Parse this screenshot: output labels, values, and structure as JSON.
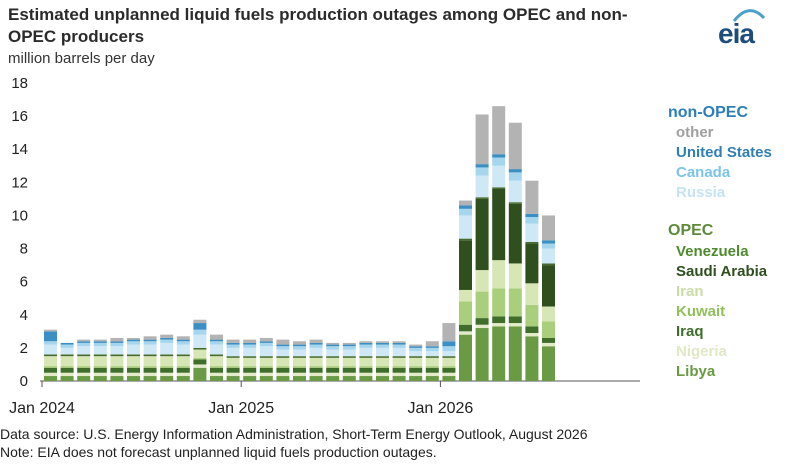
{
  "header": {
    "title": "Estimated unplanned liquid fuels production outages among OPEC and non-OPEC producers",
    "units": "million barrels per day",
    "logo": "eia"
  },
  "footer": {
    "source": "Data source: U.S. Energy Information Administration, Short-Term Energy Outlook, August 2026",
    "note": "Note: EIA does not forecast unplanned liquid fuels production outages."
  },
  "chart_data": {
    "type": "bar",
    "stacked": true,
    "ylim": [
      0,
      18
    ],
    "yticks": [
      0,
      2,
      4,
      6,
      8,
      10,
      12,
      14,
      16,
      18
    ],
    "xtick_labels": [
      "Jan 2024",
      "Jan 2025",
      "Jan 2026"
    ],
    "categories": [
      "Jan 2024",
      "Feb 2024",
      "Mar 2024",
      "Apr 2024",
      "May 2024",
      "Jun 2024",
      "Jul 2024",
      "Aug 2024",
      "Sep 2024",
      "Oct 2024",
      "Nov 2024",
      "Dec 2024",
      "Jan 2025",
      "Feb 2025",
      "Mar 2025",
      "Apr 2025",
      "May 2025",
      "Jun 2025",
      "Jul 2025",
      "Aug 2025",
      "Sep 2025",
      "Oct 2025",
      "Nov 2025",
      "Dec 2025",
      "Jan 2026",
      "Feb 2026",
      "Mar 2026",
      "Apr 2026",
      "May 2026",
      "Jun 2026",
      "Jul 2026"
    ],
    "legend_groups": [
      {
        "label": "non-OPEC",
        "color": "#2c7fb8",
        "items": [
          "other",
          "United States",
          "Canada",
          "Russia"
        ]
      },
      {
        "label": "OPEC",
        "color": "#5d8a3a",
        "items": [
          "Venezuela",
          "Saudi Arabia",
          "Iran",
          "Kuwait",
          "Iraq",
          "Nigeria",
          "Libya"
        ]
      }
    ],
    "series": [
      {
        "name": "Libya",
        "color": "#6a9a44",
        "values": [
          0.3,
          0.3,
          0.3,
          0.3,
          0.3,
          0.3,
          0.3,
          0.3,
          0.3,
          0.8,
          0.3,
          0.3,
          0.3,
          0.3,
          0.3,
          0.3,
          0.3,
          0.3,
          0.3,
          0.3,
          0.3,
          0.3,
          0.3,
          0.3,
          0.3,
          2.8,
          3.2,
          3.3,
          3.3,
          2.7,
          2.1
        ]
      },
      {
        "name": "Nigeria",
        "color": "#e3ecc8",
        "values": [
          0.2,
          0.2,
          0.2,
          0.2,
          0.2,
          0.2,
          0.2,
          0.2,
          0.2,
          0.2,
          0.2,
          0.2,
          0.2,
          0.2,
          0.2,
          0.2,
          0.2,
          0.2,
          0.2,
          0.2,
          0.2,
          0.2,
          0.2,
          0.2,
          0.2,
          0.2,
          0.2,
          0.2,
          0.2,
          0.2,
          0.2
        ]
      },
      {
        "name": "Iraq",
        "color": "#3f6e2a",
        "values": [
          0.3,
          0.3,
          0.3,
          0.3,
          0.3,
          0.3,
          0.3,
          0.3,
          0.3,
          0.3,
          0.3,
          0.3,
          0.3,
          0.3,
          0.3,
          0.3,
          0.3,
          0.3,
          0.3,
          0.3,
          0.3,
          0.3,
          0.3,
          0.3,
          0.3,
          0.4,
          0.4,
          0.4,
          0.4,
          0.4,
          0.3
        ]
      },
      {
        "name": "Kuwait",
        "color": "#a9cf7c",
        "values": [
          0.1,
          0.1,
          0.1,
          0.1,
          0.1,
          0.1,
          0.1,
          0.1,
          0.1,
          0.1,
          0.1,
          0.1,
          0.1,
          0.1,
          0.1,
          0.1,
          0.1,
          0.1,
          0.1,
          0.1,
          0.1,
          0.1,
          0.1,
          0.1,
          0.1,
          1.4,
          1.6,
          1.7,
          1.7,
          1.3,
          1.0
        ]
      },
      {
        "name": "Iran",
        "color": "#d6e6b5",
        "values": [
          0.6,
          0.6,
          0.6,
          0.6,
          0.6,
          0.6,
          0.6,
          0.6,
          0.6,
          0.5,
          0.6,
          0.5,
          0.5,
          0.5,
          0.5,
          0.5,
          0.5,
          0.5,
          0.5,
          0.5,
          0.5,
          0.5,
          0.5,
          0.5,
          0.5,
          0.7,
          1.3,
          1.7,
          1.5,
          1.3,
          0.9
        ]
      },
      {
        "name": "Saudi Arabia",
        "color": "#2f4f1f",
        "values": [
          0,
          0,
          0,
          0,
          0,
          0,
          0,
          0,
          0,
          0,
          0,
          0,
          0,
          0,
          0,
          0,
          0,
          0,
          0,
          0,
          0,
          0,
          0,
          0,
          0,
          3.0,
          4.3,
          4.3,
          3.6,
          2.4,
          2.5
        ]
      },
      {
        "name": "Venezuela",
        "color": "#466b2e",
        "values": [
          0.1,
          0.1,
          0.1,
          0.1,
          0.1,
          0.1,
          0.1,
          0.1,
          0.1,
          0.1,
          0.1,
          0.1,
          0.1,
          0.1,
          0.1,
          0.1,
          0.1,
          0.1,
          0.1,
          0.1,
          0.1,
          0.1,
          0.1,
          0.1,
          0.1,
          0.1,
          0.1,
          0.1,
          0.1,
          0.1,
          0.1
        ]
      },
      {
        "name": "Russia",
        "color": "#cfe8f6",
        "values": [
          0.6,
          0.4,
          0.5,
          0.5,
          0.5,
          0.6,
          0.6,
          0.7,
          0.6,
          0.8,
          0.6,
          0.5,
          0.5,
          0.6,
          0.4,
          0.4,
          0.5,
          0.4,
          0.4,
          0.5,
          0.5,
          0.5,
          0.3,
          0.3,
          0.3,
          1.4,
          1.3,
          1.3,
          1.3,
          1.1,
          0.9
        ]
      },
      {
        "name": "Canada",
        "color": "#a6d6ee",
        "values": [
          0.2,
          0.2,
          0.2,
          0.2,
          0.2,
          0.2,
          0.2,
          0.2,
          0.2,
          0.3,
          0.2,
          0.2,
          0.2,
          0.2,
          0.2,
          0.2,
          0.2,
          0.2,
          0.2,
          0.2,
          0.2,
          0.2,
          0.2,
          0.2,
          0.3,
          0.4,
          0.5,
          0.5,
          0.5,
          0.4,
          0.3
        ]
      },
      {
        "name": "United States",
        "color": "#3c8fc4",
        "values": [
          0.6,
          0.1,
          0.1,
          0.1,
          0.1,
          0.1,
          0.1,
          0.1,
          0.1,
          0.4,
          0.1,
          0.1,
          0.1,
          0.1,
          0.1,
          0.1,
          0.1,
          0.1,
          0.1,
          0.1,
          0.1,
          0.1,
          0.1,
          0.1,
          0.3,
          0.2,
          0.2,
          0.2,
          0.2,
          0.2,
          0.2
        ]
      },
      {
        "name": "other",
        "color": "#b3b3b3",
        "values": [
          0.1,
          0.0,
          0.1,
          0.1,
          0.2,
          0.1,
          0.2,
          0.2,
          0.2,
          0.2,
          0.3,
          0.2,
          0.2,
          0.2,
          0.3,
          0.2,
          0.2,
          0.1,
          0.1,
          0.1,
          0.1,
          0.1,
          0.1,
          0.3,
          1.1,
          0.3,
          3.0,
          2.9,
          2.8,
          2.0,
          1.5
        ]
      }
    ]
  }
}
